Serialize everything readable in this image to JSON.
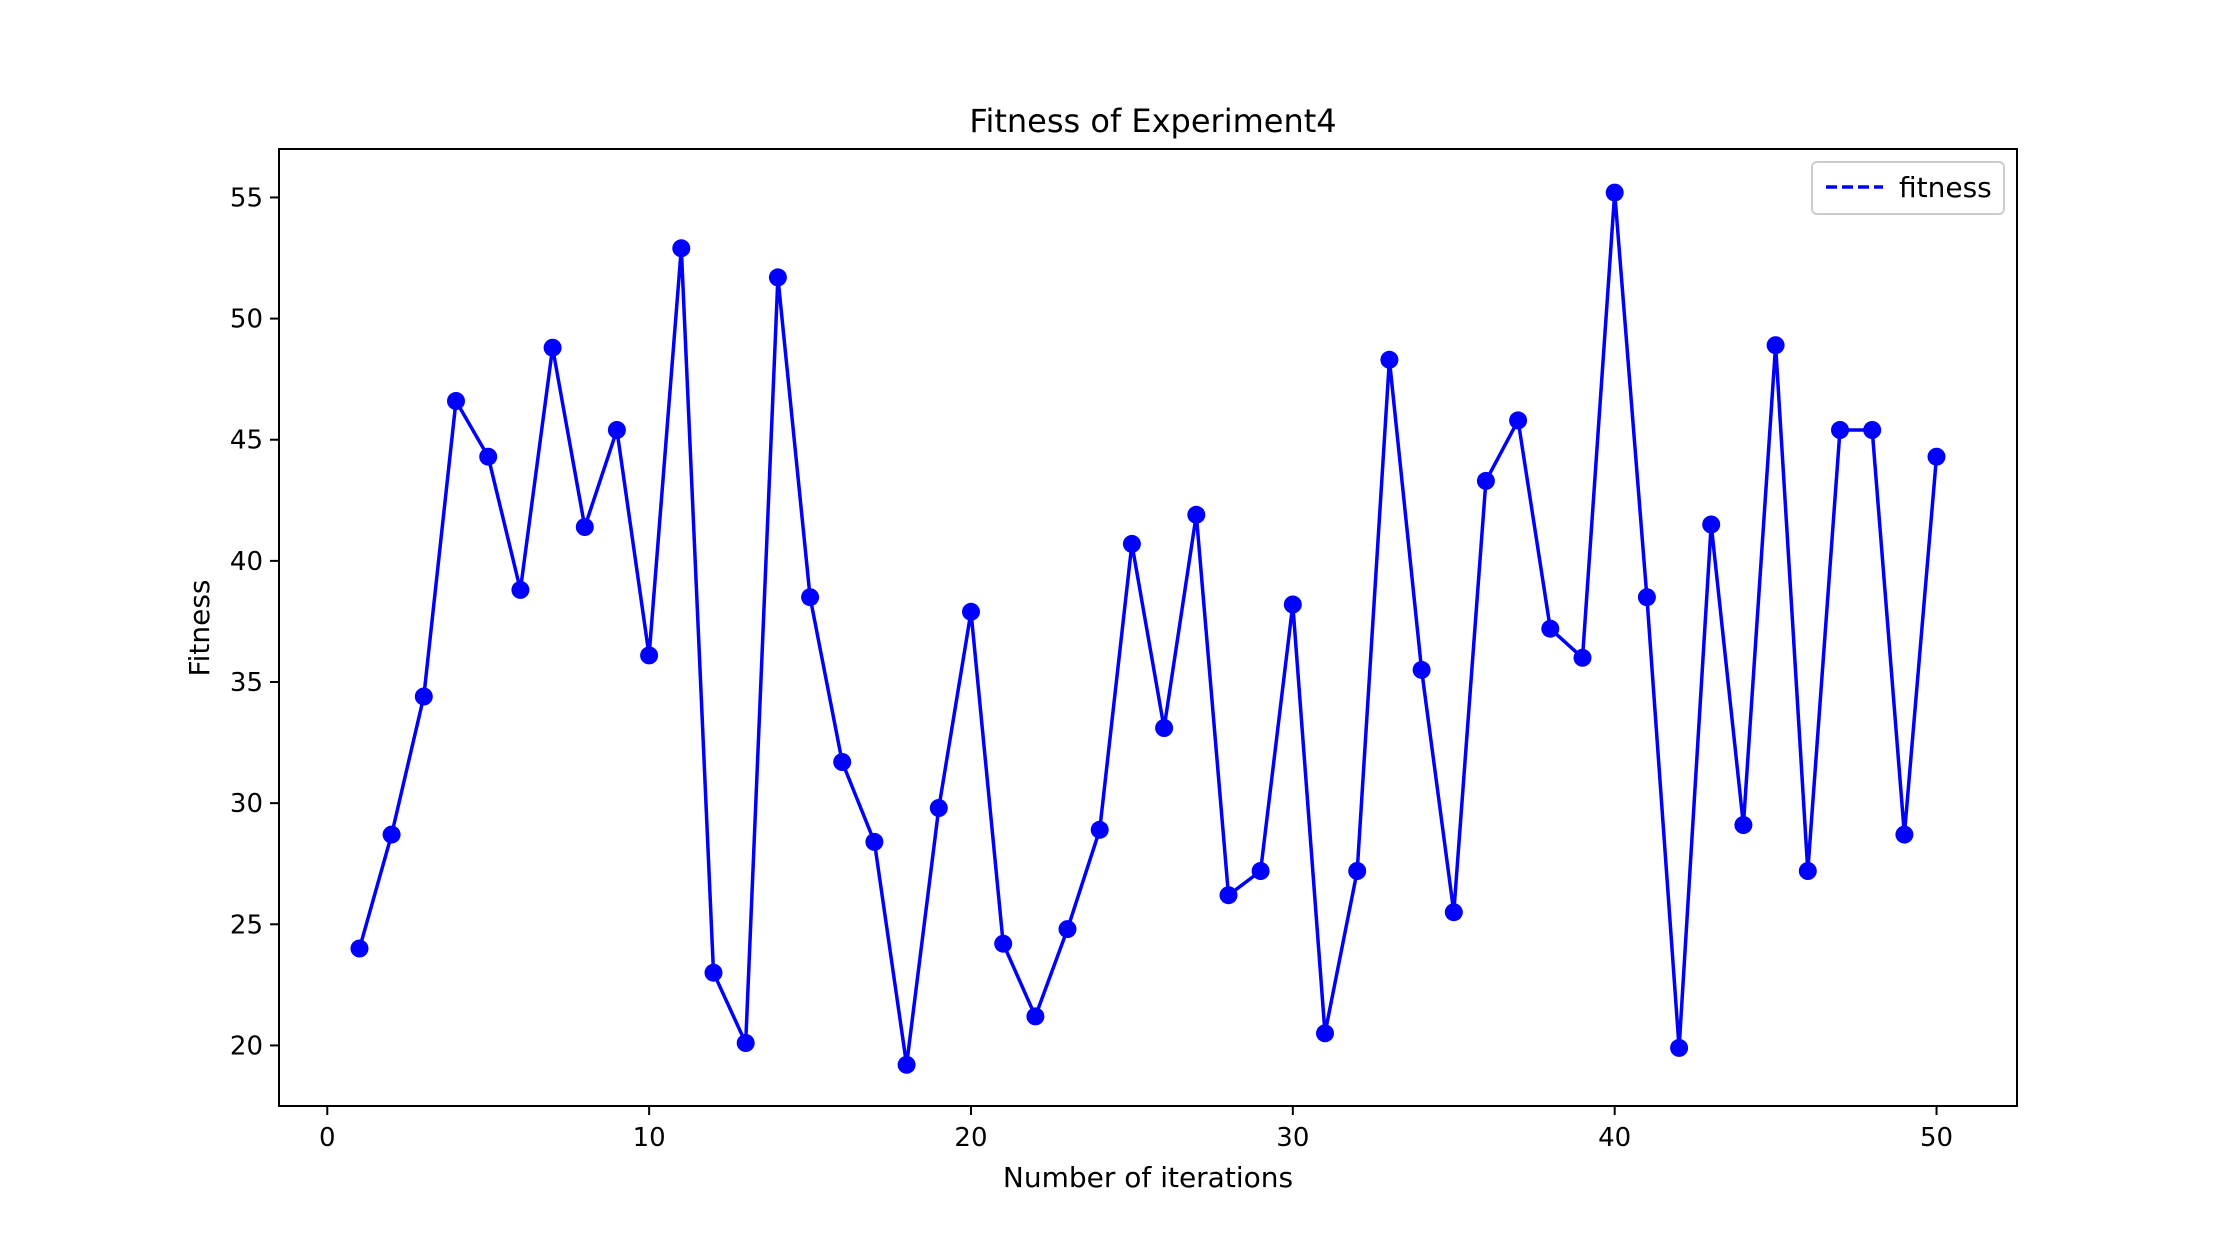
{
  "chart_data": {
    "type": "line",
    "title": "Fitness of Experiment4",
    "xlabel": "Number of iterations",
    "ylabel": "Fitness",
    "xlim": [
      -1.5,
      52.5
    ],
    "ylim": [
      17.5,
      57.0
    ],
    "xticks": [
      0,
      10,
      20,
      30,
      40,
      50
    ],
    "yticks": [
      20,
      25,
      30,
      35,
      40,
      45,
      50,
      55
    ],
    "grid": false,
    "legend": {
      "position": "top-right",
      "entries": [
        "fitness"
      ],
      "style": "dashed"
    },
    "series": [
      {
        "name": "fitness",
        "color": "#0000ff",
        "marker": "circle",
        "x": [
          1,
          2,
          3,
          4,
          5,
          6,
          7,
          8,
          9,
          10,
          11,
          12,
          13,
          14,
          15,
          16,
          17,
          18,
          19,
          20,
          21,
          22,
          23,
          24,
          25,
          26,
          27,
          28,
          29,
          30,
          31,
          32,
          33,
          34,
          35,
          36,
          37,
          38,
          39,
          40,
          41,
          42,
          43,
          44,
          45,
          46,
          47,
          48,
          49,
          50
        ],
        "y": [
          24.0,
          28.7,
          34.4,
          46.6,
          44.3,
          38.8,
          48.8,
          41.4,
          45.4,
          36.1,
          52.9,
          23.0,
          20.1,
          51.7,
          38.5,
          31.7,
          28.4,
          19.2,
          29.8,
          37.9,
          24.2,
          21.2,
          24.8,
          28.9,
          40.7,
          33.1,
          41.9,
          26.2,
          27.2,
          38.2,
          20.5,
          27.2,
          48.3,
          35.5,
          25.5,
          43.3,
          45.8,
          37.2,
          36.0,
          55.2,
          38.5,
          19.9,
          41.5,
          29.1,
          48.9,
          27.2,
          45.4,
          45.4,
          28.7,
          44.3
        ]
      }
    ]
  }
}
